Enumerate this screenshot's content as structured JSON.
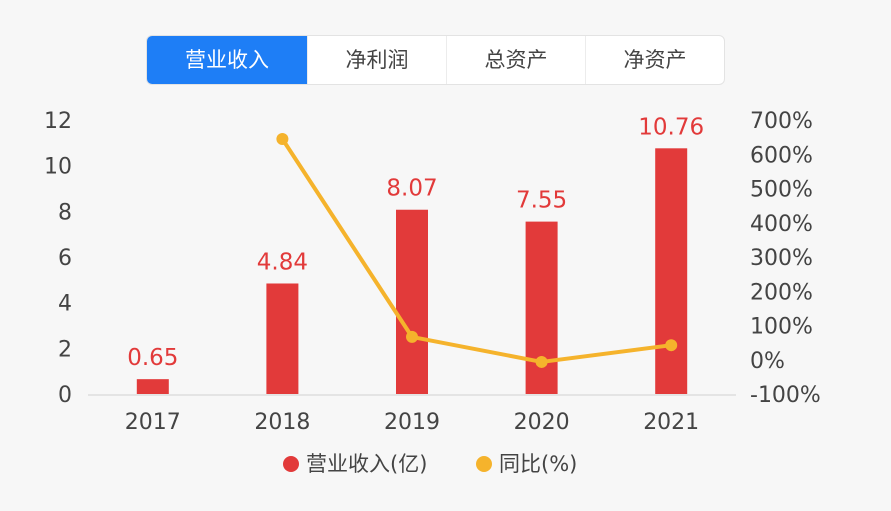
{
  "tabs": [
    {
      "label": "营业收入",
      "active": true
    },
    {
      "label": "净利润",
      "active": false
    },
    {
      "label": "总资产",
      "active": false
    },
    {
      "label": "净资产",
      "active": false
    }
  ],
  "colors": {
    "bar": "#e23a3a",
    "line": "#f5b32c",
    "tab_active": "#1e7ef6"
  },
  "chart_data": {
    "type": "bar",
    "categories": [
      "2017",
      "2018",
      "2019",
      "2020",
      "2021"
    ],
    "series": [
      {
        "name": "营业收入(亿)",
        "type": "bar",
        "axis": "left",
        "values": [
          0.65,
          4.84,
          8.07,
          7.55,
          10.76
        ],
        "labels": [
          "0.65",
          "4.84",
          "8.07",
          "7.55",
          "10.76"
        ]
      },
      {
        "name": "同比(%)",
        "type": "line",
        "axis": "right",
        "values": [
          null,
          644.6,
          66.7,
          -6.4,
          42.5
        ]
      }
    ],
    "y_left": {
      "ticks": [
        "0",
        "2",
        "4",
        "6",
        "8",
        "10",
        "12"
      ],
      "lim": [
        0,
        12
      ]
    },
    "y_right": {
      "ticks": [
        "-100%",
        "0%",
        "100%",
        "200%",
        "300%",
        "400%",
        "500%",
        "600%",
        "700%"
      ],
      "lim": [
        -100,
        700
      ]
    },
    "legend_position": "bottom"
  }
}
